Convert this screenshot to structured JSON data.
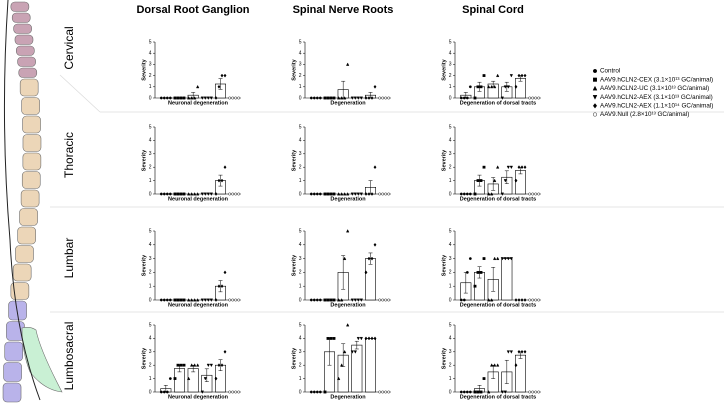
{
  "columns": [
    "Dorsal Root Ganglion",
    "Spinal Nerve Roots",
    "Spinal Cord"
  ],
  "rows": [
    "Cervical",
    "Thoracic",
    "Lumbar",
    "Lumbosacral"
  ],
  "legend": [
    {
      "name": "Control",
      "marker": "circle"
    },
    {
      "name": "AAV9.hCLN2-CEX (3.1×10¹³ GC/animal)",
      "marker": "square"
    },
    {
      "name": "AAV9.hCLN2-UC (3.1×10¹³ GC/animal)",
      "marker": "triangle"
    },
    {
      "name": "AAV9.hCLN2-AEX (3.1×10¹³ GC/animal)",
      "marker": "triangle-down"
    },
    {
      "name": "AAV9.hCLN2-AEX (1.1×10¹⁴ GC/animal)",
      "marker": "diamond"
    },
    {
      "name": "AAV9.Null (2.8×10¹³ GC/animal)",
      "marker": "circle-open"
    }
  ],
  "chart_data": [
    {
      "type": "bar",
      "ylabel": "Severity",
      "xlabel": "Neuronal degeneration",
      "ylim": [
        0,
        5
      ],
      "yticks": [
        0,
        1,
        2,
        3,
        4,
        5
      ],
      "values": [
        0,
        0,
        0.25,
        0,
        1.25,
        0
      ],
      "errors": [
        0,
        0,
        0.25,
        0,
        0.48,
        0
      ],
      "points": [
        [
          0,
          0,
          0,
          0
        ],
        [
          0,
          0,
          0,
          0
        ],
        [
          0,
          0,
          0,
          1
        ],
        [
          0,
          0,
          0,
          0
        ],
        [
          0,
          1,
          2,
          2
        ],
        [
          0,
          0,
          0,
          0
        ]
      ]
    },
    {
      "type": "bar",
      "ylabel": "Severity",
      "xlabel": "Degeneration",
      "ylim": [
        0,
        5
      ],
      "yticks": [
        0,
        1,
        2,
        3,
        4,
        5
      ],
      "values": [
        0,
        0,
        0.75,
        0,
        0.25,
        0
      ],
      "errors": [
        0,
        0,
        0.75,
        0,
        0.25,
        0
      ],
      "points": [
        [
          0,
          0,
          0,
          0
        ],
        [
          0,
          0,
          0,
          0
        ],
        [
          0,
          0,
          0,
          3
        ],
        [
          0,
          0,
          0,
          0
        ],
        [
          0,
          0,
          0,
          1
        ],
        [
          0,
          0,
          0,
          0
        ]
      ]
    },
    {
      "type": "bar",
      "ylabel": "Severity",
      "xlabel": "Degeneration of dorsal tracts",
      "ylim": [
        0,
        5
      ],
      "yticks": [
        0,
        1,
        2,
        3,
        4,
        5
      ],
      "values": [
        0.25,
        1,
        1.25,
        1,
        1.75,
        0
      ],
      "errors": [
        0.25,
        0.41,
        0.25,
        0.41,
        0.25,
        0
      ],
      "points": [
        [
          0,
          0,
          0,
          1
        ],
        [
          0,
          1,
          1,
          2
        ],
        [
          1,
          1,
          1,
          2
        ],
        [
          0,
          1,
          1,
          2
        ],
        [
          1,
          2,
          2,
          2
        ],
        [
          0,
          0,
          0,
          0
        ]
      ]
    },
    {
      "type": "bar",
      "ylabel": "Severity",
      "xlabel": "Neuronal degeneration",
      "ylim": [
        0,
        5
      ],
      "yticks": [
        0,
        1,
        2,
        3,
        4,
        5
      ],
      "values": [
        0,
        0,
        0,
        0,
        1,
        0
      ],
      "errors": [
        0,
        0,
        0,
        0,
        0.41,
        0
      ],
      "points": [
        [
          0,
          0,
          0,
          0
        ],
        [
          0,
          0,
          0,
          0
        ],
        [
          0,
          0,
          0,
          0
        ],
        [
          0,
          0,
          0,
          0
        ],
        [
          0,
          1,
          1,
          2
        ],
        [
          0,
          0,
          0,
          0
        ]
      ]
    },
    {
      "type": "bar",
      "ylabel": "Severity",
      "xlabel": "Degeneration",
      "ylim": [
        0,
        5
      ],
      "yticks": [
        0,
        1,
        2,
        3,
        4,
        5
      ],
      "values": [
        0,
        0,
        0,
        0,
        0.5,
        0
      ],
      "errors": [
        0,
        0,
        0,
        0,
        0.5,
        0
      ],
      "points": [
        [
          0,
          0,
          0,
          0
        ],
        [
          0,
          0,
          0,
          0
        ],
        [
          0,
          0,
          0,
          0
        ],
        [
          0,
          0,
          0,
          0
        ],
        [
          0,
          0,
          0,
          2
        ],
        [
          0,
          0,
          0,
          0
        ]
      ]
    },
    {
      "type": "bar",
      "ylabel": "Severity",
      "xlabel": "Degeneration of dorsal tracts",
      "ylim": [
        0,
        5
      ],
      "yticks": [
        0,
        1,
        2,
        3,
        4,
        5
      ],
      "values": [
        0,
        1,
        0.75,
        1.25,
        1.75,
        0
      ],
      "errors": [
        0,
        0.41,
        0.48,
        0.48,
        0.25,
        0
      ],
      "points": [
        [
          0,
          0,
          0,
          0
        ],
        [
          0,
          1,
          1,
          2
        ],
        [
          0,
          0,
          1,
          2
        ],
        [
          0,
          1,
          2,
          2
        ],
        [
          1,
          2,
          2,
          2
        ],
        [
          0,
          0,
          0,
          0
        ]
      ]
    },
    {
      "type": "bar",
      "ylabel": "Severity",
      "xlabel": "Neuronal degeneration",
      "ylim": [
        0,
        5
      ],
      "yticks": [
        0,
        1,
        2,
        3,
        4,
        5
      ],
      "values": [
        0,
        0,
        0,
        0,
        1,
        0
      ],
      "errors": [
        0,
        0,
        0,
        0,
        0.41,
        0
      ],
      "points": [
        [
          0,
          0,
          0,
          0
        ],
        [
          0,
          0,
          0,
          0
        ],
        [
          0,
          0,
          0,
          0
        ],
        [
          0,
          0,
          0,
          0
        ],
        [
          0,
          1,
          1,
          2
        ],
        [
          0,
          0,
          0,
          0
        ]
      ]
    },
    {
      "type": "bar",
      "ylabel": "Severity",
      "xlabel": "Degeneration",
      "ylim": [
        0,
        5
      ],
      "yticks": [
        0,
        1,
        2,
        3,
        4,
        5
      ],
      "values": [
        0,
        0,
        2,
        0,
        3,
        0
      ],
      "errors": [
        0,
        0,
        1.22,
        0,
        0.41,
        0
      ],
      "points": [
        [
          0,
          0,
          0,
          0
        ],
        [
          0,
          0,
          0,
          0
        ],
        [
          0,
          0,
          3,
          5
        ],
        [
          0,
          0,
          0,
          0
        ],
        [
          2,
          3,
          3,
          4
        ],
        [
          0,
          0,
          0,
          0
        ]
      ]
    },
    {
      "type": "bar",
      "ylabel": "Severity",
      "xlabel": "Degeneration of dorsal tracts",
      "ylim": [
        0,
        5
      ],
      "yticks": [
        0,
        1,
        2,
        3,
        4,
        5
      ],
      "values": [
        1.25,
        2,
        1.5,
        3,
        0,
        0
      ],
      "errors": [
        0.75,
        0.41,
        0.87,
        0,
        0,
        0
      ],
      "points": [
        [
          0,
          0,
          2,
          3
        ],
        [
          1,
          2,
          2,
          3
        ],
        [
          0,
          0,
          3,
          3
        ],
        [
          3,
          3,
          3,
          3
        ],
        [
          0,
          0,
          0,
          0
        ],
        [
          0,
          0,
          0,
          0
        ]
      ]
    },
    {
      "type": "bar",
      "ylabel": "Severity",
      "xlabel": "Neuronal degeneration",
      "ylim": [
        0,
        5
      ],
      "yticks": [
        0,
        1,
        2,
        3,
        4,
        5
      ],
      "values": [
        0.25,
        1.75,
        1.75,
        1.25,
        2,
        0
      ],
      "errors": [
        0.25,
        0.25,
        0.25,
        0.48,
        0.41,
        0
      ],
      "points": [
        [
          0,
          0,
          0,
          1
        ],
        [
          1,
          2,
          2,
          2
        ],
        [
          1,
          2,
          2,
          2
        ],
        [
          0,
          1,
          2,
          2
        ],
        [
          1,
          2,
          2,
          3
        ],
        [
          0,
          0,
          0,
          0
        ]
      ]
    },
    {
      "type": "bar",
      "ylabel": "Severity",
      "xlabel": "Degeneration",
      "ylim": [
        0,
        5
      ],
      "yticks": [
        0,
        1,
        2,
        3,
        4,
        5
      ],
      "values": [
        0,
        3,
        2.75,
        3.5,
        4,
        0
      ],
      "errors": [
        0,
        1,
        0.85,
        0.29,
        0,
        0
      ],
      "points": [
        [
          0,
          0,
          0,
          0
        ],
        [
          0,
          4,
          4,
          4
        ],
        [
          1,
          2,
          3,
          5
        ],
        [
          3,
          3,
          4,
          4
        ],
        [
          4,
          4,
          4,
          4
        ],
        [
          0,
          0,
          0,
          0
        ]
      ]
    },
    {
      "type": "bar",
      "ylabel": "Severity",
      "xlabel": "Degeneration of dorsal tracts",
      "ylim": [
        0,
        5
      ],
      "yticks": [
        0,
        1,
        2,
        3,
        4,
        5
      ],
      "values": [
        0,
        0.25,
        1.5,
        1.5,
        2.75,
        0
      ],
      "errors": [
        0,
        0.25,
        0.5,
        0.87,
        0.25,
        0
      ],
      "points": [
        [
          0,
          0,
          0,
          0
        ],
        [
          0,
          0,
          0,
          1
        ],
        [
          0,
          2,
          2,
          2
        ],
        [
          0,
          0,
          3,
          3
        ],
        [
          2,
          3,
          3,
          3
        ],
        [
          0,
          0,
          0,
          0
        ]
      ]
    }
  ]
}
